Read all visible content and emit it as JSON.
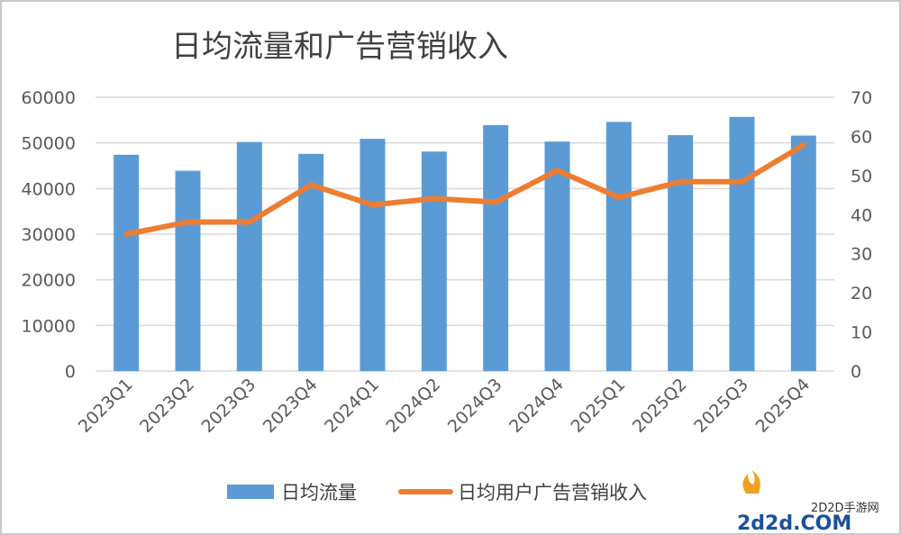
{
  "chart_data": {
    "type": "bar+line",
    "title": "日均流量和广告营销收入",
    "categories": [
      "2023Q1",
      "2023Q2",
      "2023Q3",
      "2023Q4",
      "2024Q1",
      "2024Q2",
      "2024Q3",
      "2024Q4",
      "2025Q1",
      "2025Q2",
      "2025Q3",
      "2025Q4"
    ],
    "series": [
      {
        "name": "日均流量",
        "type": "bar",
        "axis": "left",
        "color": "#5b9bd5",
        "values": [
          47400,
          43900,
          50200,
          47600,
          50900,
          48100,
          53900,
          50300,
          54600,
          51700,
          55700,
          51600
        ]
      },
      {
        "name": "日均用户广告营销收入",
        "type": "line",
        "axis": "right",
        "color": "#ed7d31",
        "values": [
          35.0,
          38.1,
          38.1,
          47.6,
          42.5,
          44.1,
          43.2,
          51.3,
          44.4,
          48.4,
          48.4,
          57.8
        ]
      }
    ],
    "y_left": {
      "range": [
        0,
        60000
      ],
      "ticks": [
        "0",
        "10000",
        "20000",
        "30000",
        "40000",
        "50000",
        "60000"
      ]
    },
    "y_right": {
      "range": [
        0,
        70
      ],
      "ticks": [
        "0",
        "10",
        "20",
        "30",
        "40",
        "50",
        "60",
        "70"
      ]
    },
    "grid": true,
    "legend_position": "bottom"
  },
  "watermark": {
    "line1": "2D2D手游网",
    "line2": "2d2d.COM"
  }
}
